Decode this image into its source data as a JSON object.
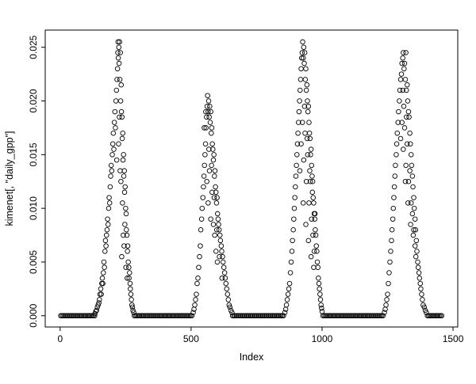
{
  "figure": {
    "background": "#ffffff",
    "foreground": "#000000"
  },
  "chart_data": {
    "type": "scatter",
    "title": "",
    "xlabel": "Index",
    "ylabel": "kimenet[, \"daily_gpp\"]",
    "marker": "open-circle",
    "marker_color": "#000000",
    "grid": false,
    "legend": "none",
    "x_ticks": [
      0,
      500,
      1000,
      1500
    ],
    "x_tick_labels": [
      "0",
      "500",
      "1000",
      "1500"
    ],
    "y_ticks": [
      0.0,
      0.005,
      0.01,
      0.015,
      0.02,
      0.025
    ],
    "y_tick_labels": [
      "0.000",
      "0.005",
      "0.010",
      "0.015",
      "0.020",
      "0.025"
    ],
    "x_domain": [
      -57,
      1518
    ],
    "y_domain": [
      -0.00105,
      0.0266
    ],
    "x_range_data": [
      1,
      1460
    ],
    "y_range_data": [
      0,
      0.0256
    ],
    "zero_value": 0.0,
    "zero_run_step": 5,
    "zero_runs": [
      [
        2,
        132
      ],
      [
        283,
        505
      ],
      [
        658,
        855
      ],
      [
        1003,
        1236
      ],
      [
        1402,
        1458
      ]
    ],
    "points": [
      [
        133,
        0.0002
      ],
      [
        136,
        0.0004
      ],
      [
        139,
        0.0005
      ],
      [
        142,
        0.0008
      ],
      [
        145,
        0.001
      ],
      [
        148,
        0.0012
      ],
      [
        150,
        0.0015
      ],
      [
        152,
        0.002
      ],
      [
        155,
        0.0025
      ],
      [
        157,
        0.002
      ],
      [
        159,
        0.003
      ],
      [
        161,
        0.0035
      ],
      [
        163,
        0.003
      ],
      [
        165,
        0.004
      ],
      [
        167,
        0.005
      ],
      [
        169,
        0.0045
      ],
      [
        171,
        0.006
      ],
      [
        173,
        0.007
      ],
      [
        175,
        0.0065
      ],
      [
        177,
        0.0075
      ],
      [
        179,
        0.008
      ],
      [
        181,
        0.009
      ],
      [
        183,
        0.0085
      ],
      [
        185,
        0.01
      ],
      [
        187,
        0.011
      ],
      [
        189,
        0.0105
      ],
      [
        191,
        0.012
      ],
      [
        193,
        0.013
      ],
      [
        195,
        0.014
      ],
      [
        197,
        0.0135
      ],
      [
        199,
        0.015
      ],
      [
        201,
        0.016
      ],
      [
        203,
        0.017
      ],
      [
        205,
        0.0155
      ],
      [
        207,
        0.018
      ],
      [
        209,
        0.019
      ],
      [
        211,
        0.0175
      ],
      [
        213,
        0.02
      ],
      [
        215,
        0.021
      ],
      [
        216,
        0.0145
      ],
      [
        217,
        0.022
      ],
      [
        219,
        0.023
      ],
      [
        220,
        0.0245
      ],
      [
        221,
        0.0255
      ],
      [
        222,
        0.024
      ],
      [
        223,
        0.016
      ],
      [
        224,
        0.025
      ],
      [
        225,
        0.0235
      ],
      [
        226,
        0.0185
      ],
      [
        227,
        0.0255
      ],
      [
        228,
        0.022
      ],
      [
        229,
        0.0135
      ],
      [
        230,
        0.0245
      ],
      [
        231,
        0.02
      ],
      [
        232,
        0.0125
      ],
      [
        233,
        0.0215
      ],
      [
        234,
        0.019
      ],
      [
        235,
        0.0055
      ],
      [
        236,
        0.0185
      ],
      [
        237,
        0.0165
      ],
      [
        238,
        0.0105
      ],
      [
        239,
        0.017
      ],
      [
        240,
        0.0145
      ],
      [
        241,
        0.0075
      ],
      [
        242,
        0.015
      ],
      [
        243,
        0.013
      ],
      [
        244,
        0.0065
      ],
      [
        245,
        0.0135
      ],
      [
        246,
        0.0115
      ],
      [
        247,
        0.0085
      ],
      [
        248,
        0.012
      ],
      [
        250,
        0.01
      ],
      [
        251,
        0.0045
      ],
      [
        252,
        0.0095
      ],
      [
        253,
        0.008
      ],
      [
        255,
        0.0075
      ],
      [
        256,
        0.0035
      ],
      [
        257,
        0.006
      ],
      [
        258,
        0.0065
      ],
      [
        260,
        0.005
      ],
      [
        262,
        0.0045
      ],
      [
        263,
        0.0035
      ],
      [
        265,
        0.004
      ],
      [
        267,
        0.003
      ],
      [
        268,
        0.0025
      ],
      [
        270,
        0.002
      ],
      [
        272,
        0.0015
      ],
      [
        274,
        0.001
      ],
      [
        276,
        0.0008
      ],
      [
        278,
        0.0005
      ],
      [
        281,
        0.0003
      ],
      [
        508,
        0.0003
      ],
      [
        511,
        0.0006
      ],
      [
        514,
        0.001
      ],
      [
        517,
        0.0015
      ],
      [
        520,
        0.002
      ],
      [
        523,
        0.003
      ],
      [
        526,
        0.0035
      ],
      [
        529,
        0.0045
      ],
      [
        532,
        0.0055
      ],
      [
        535,
        0.0065
      ],
      [
        537,
        0.008
      ],
      [
        540,
        0.009
      ],
      [
        542,
        0.01
      ],
      [
        545,
        0.011
      ],
      [
        547,
        0.012
      ],
      [
        549,
        0.013
      ],
      [
        550,
        0.0175
      ],
      [
        551,
        0.014
      ],
      [
        553,
        0.015
      ],
      [
        555,
        0.016
      ],
      [
        556,
        0.019
      ],
      [
        557,
        0.0175
      ],
      [
        559,
        0.0185
      ],
      [
        560,
        0.0125
      ],
      [
        561,
        0.0195
      ],
      [
        563,
        0.0205
      ],
      [
        565,
        0.019
      ],
      [
        565,
        0.0105
      ],
      [
        567,
        0.02
      ],
      [
        568,
        0.0155
      ],
      [
        569,
        0.0185
      ],
      [
        570,
        0.0135
      ],
      [
        571,
        0.0195
      ],
      [
        573,
        0.018
      ],
      [
        575,
        0.019
      ],
      [
        575,
        0.009
      ],
      [
        577,
        0.017
      ],
      [
        578,
        0.014
      ],
      [
        579,
        0.0175
      ],
      [
        580,
        0.0115
      ],
      [
        581,
        0.016
      ],
      [
        583,
        0.0155
      ],
      [
        585,
        0.0145
      ],
      [
        585,
        0.0085
      ],
      [
        587,
        0.015
      ],
      [
        588,
        0.011
      ],
      [
        589,
        0.013
      ],
      [
        590,
        0.0075
      ],
      [
        591,
        0.0135
      ],
      [
        593,
        0.012
      ],
      [
        595,
        0.0115
      ],
      [
        595,
        0.006
      ],
      [
        597,
        0.0105
      ],
      [
        598,
        0.008
      ],
      [
        599,
        0.011
      ],
      [
        600,
        0.005
      ],
      [
        601,
        0.0095
      ],
      [
        603,
        0.009
      ],
      [
        605,
        0.0085
      ],
      [
        607,
        0.008
      ],
      [
        608,
        0.0055
      ],
      [
        610,
        0.0075
      ],
      [
        612,
        0.007
      ],
      [
        615,
        0.0065
      ],
      [
        617,
        0.006
      ],
      [
        618,
        0.0035
      ],
      [
        620,
        0.0055
      ],
      [
        622,
        0.005
      ],
      [
        625,
        0.0045
      ],
      [
        628,
        0.004
      ],
      [
        630,
        0.0035
      ],
      [
        633,
        0.003
      ],
      [
        636,
        0.0025
      ],
      [
        639,
        0.002
      ],
      [
        642,
        0.0015
      ],
      [
        645,
        0.001
      ],
      [
        648,
        0.0008
      ],
      [
        652,
        0.0005
      ],
      [
        656,
        0.0003
      ],
      [
        858,
        0.0003
      ],
      [
        861,
        0.0006
      ],
      [
        864,
        0.001
      ],
      [
        867,
        0.0015
      ],
      [
        870,
        0.002
      ],
      [
        873,
        0.0025
      ],
      [
        876,
        0.003
      ],
      [
        879,
        0.004
      ],
      [
        882,
        0.005
      ],
      [
        885,
        0.006
      ],
      [
        887,
        0.007
      ],
      [
        890,
        0.008
      ],
      [
        892,
        0.009
      ],
      [
        894,
        0.01
      ],
      [
        896,
        0.011
      ],
      [
        898,
        0.012
      ],
      [
        900,
        0.013
      ],
      [
        902,
        0.014
      ],
      [
        904,
        0.015
      ],
      [
        906,
        0.016
      ],
      [
        908,
        0.017
      ],
      [
        910,
        0.018
      ],
      [
        912,
        0.019
      ],
      [
        914,
        0.02
      ],
      [
        915,
        0.0135
      ],
      [
        916,
        0.021
      ],
      [
        918,
        0.022
      ],
      [
        920,
        0.023
      ],
      [
        920,
        0.016
      ],
      [
        922,
        0.024
      ],
      [
        924,
        0.0245
      ],
      [
        925,
        0.018
      ],
      [
        926,
        0.0255
      ],
      [
        928,
        0.024
      ],
      [
        928,
        0.0105
      ],
      [
        930,
        0.025
      ],
      [
        930,
        0.0145
      ],
      [
        932,
        0.0235
      ],
      [
        933,
        0.0195
      ],
      [
        934,
        0.0245
      ],
      [
        935,
        0.017
      ],
      [
        936,
        0.022
      ],
      [
        938,
        0.023
      ],
      [
        938,
        0.0085
      ],
      [
        940,
        0.021
      ],
      [
        940,
        0.0125
      ],
      [
        942,
        0.0215
      ],
      [
        943,
        0.0165
      ],
      [
        944,
        0.02
      ],
      [
        945,
        0.015
      ],
      [
        946,
        0.019
      ],
      [
        948,
        0.0195
      ],
      [
        948,
        0.007
      ],
      [
        950,
        0.018
      ],
      [
        950,
        0.0105
      ],
      [
        952,
        0.017
      ],
      [
        953,
        0.0135
      ],
      [
        954,
        0.0165
      ],
      [
        955,
        0.0125
      ],
      [
        956,
        0.015
      ],
      [
        958,
        0.0155
      ],
      [
        958,
        0.0055
      ],
      [
        960,
        0.014
      ],
      [
        960,
        0.009
      ],
      [
        962,
        0.013
      ],
      [
        963,
        0.0115
      ],
      [
        964,
        0.0125
      ],
      [
        965,
        0.0075
      ],
      [
        966,
        0.011
      ],
      [
        968,
        0.0105
      ],
      [
        968,
        0.0045
      ],
      [
        970,
        0.0095
      ],
      [
        970,
        0.006
      ],
      [
        972,
        0.009
      ],
      [
        973,
        0.0095
      ],
      [
        974,
        0.008
      ],
      [
        976,
        0.0075
      ],
      [
        978,
        0.0065
      ],
      [
        980,
        0.006
      ],
      [
        982,
        0.005
      ],
      [
        984,
        0.0045
      ],
      [
        986,
        0.0035
      ],
      [
        988,
        0.003
      ],
      [
        990,
        0.0025
      ],
      [
        992,
        0.002
      ],
      [
        994,
        0.0015
      ],
      [
        996,
        0.001
      ],
      [
        998,
        0.0007
      ],
      [
        1000,
        0.0004
      ],
      [
        1238,
        0.0003
      ],
      [
        1241,
        0.0006
      ],
      [
        1244,
        0.001
      ],
      [
        1247,
        0.0015
      ],
      [
        1250,
        0.002
      ],
      [
        1253,
        0.003
      ],
      [
        1256,
        0.004
      ],
      [
        1259,
        0.005
      ],
      [
        1262,
        0.006
      ],
      [
        1265,
        0.007
      ],
      [
        1267,
        0.008
      ],
      [
        1270,
        0.009
      ],
      [
        1272,
        0.01
      ],
      [
        1274,
        0.011
      ],
      [
        1276,
        0.012
      ],
      [
        1278,
        0.013
      ],
      [
        1280,
        0.014
      ],
      [
        1283,
        0.015
      ],
      [
        1285,
        0.016
      ],
      [
        1287,
        0.017
      ],
      [
        1290,
        0.018
      ],
      [
        1292,
        0.019
      ],
      [
        1295,
        0.02
      ],
      [
        1297,
        0.021
      ],
      [
        1300,
        0.022
      ],
      [
        1300,
        0.0165
      ],
      [
        1303,
        0.0225
      ],
      [
        1305,
        0.0235
      ],
      [
        1305,
        0.018
      ],
      [
        1308,
        0.024
      ],
      [
        1308,
        0.021
      ],
      [
        1310,
        0.0245
      ],
      [
        1310,
        0.0155
      ],
      [
        1312,
        0.0195
      ],
      [
        1313,
        0.023
      ],
      [
        1315,
        0.0235
      ],
      [
        1315,
        0.0175
      ],
      [
        1318,
        0.022
      ],
      [
        1318,
        0.0125
      ],
      [
        1320,
        0.0245
      ],
      [
        1320,
        0.014
      ],
      [
        1322,
        0.021
      ],
      [
        1322,
        0.0185
      ],
      [
        1325,
        0.0215
      ],
      [
        1325,
        0.016
      ],
      [
        1327,
        0.02
      ],
      [
        1328,
        0.0105
      ],
      [
        1330,
        0.019
      ],
      [
        1330,
        0.0125
      ],
      [
        1332,
        0.0185
      ],
      [
        1335,
        0.017
      ],
      [
        1335,
        0.0135
      ],
      [
        1337,
        0.016
      ],
      [
        1338,
        0.0085
      ],
      [
        1340,
        0.015
      ],
      [
        1340,
        0.0105
      ],
      [
        1342,
        0.014
      ],
      [
        1345,
        0.013
      ],
      [
        1345,
        0.0095
      ],
      [
        1347,
        0.012
      ],
      [
        1348,
        0.0075
      ],
      [
        1350,
        0.011
      ],
      [
        1350,
        0.008
      ],
      [
        1352,
        0.01
      ],
      [
        1355,
        0.009
      ],
      [
        1355,
        0.0065
      ],
      [
        1357,
        0.008
      ],
      [
        1358,
        0.0055
      ],
      [
        1360,
        0.007
      ],
      [
        1362,
        0.006
      ],
      [
        1365,
        0.005
      ],
      [
        1367,
        0.0045
      ],
      [
        1370,
        0.004
      ],
      [
        1372,
        0.0035
      ],
      [
        1375,
        0.003
      ],
      [
        1377,
        0.0025
      ],
      [
        1380,
        0.002
      ],
      [
        1383,
        0.0015
      ],
      [
        1386,
        0.001
      ],
      [
        1390,
        0.0008
      ],
      [
        1394,
        0.0005
      ],
      [
        1398,
        0.0003
      ]
    ]
  }
}
